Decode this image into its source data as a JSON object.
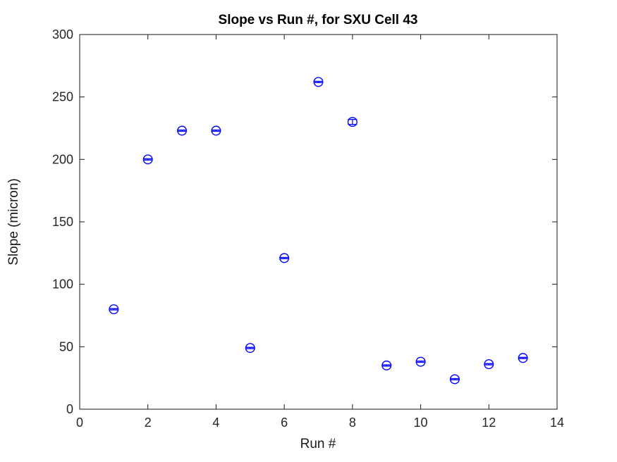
{
  "window": {
    "background": "#ffffff"
  },
  "colors": {
    "marker": "#0000FF",
    "axis": "#1a1a1a",
    "tick_text": "#262626",
    "title_text": "#000000",
    "background": "#ffffff"
  },
  "chart_data": {
    "type": "scatter",
    "subtype": "errorbar",
    "title": "Slope vs Run #, for SXU Cell 43",
    "xlabel": "Run #",
    "ylabel": "Slope (micron)",
    "xlim": [
      0,
      14
    ],
    "ylim": [
      0,
      300
    ],
    "xticks": [
      0,
      2,
      4,
      6,
      8,
      10,
      12,
      14
    ],
    "yticks": [
      0,
      50,
      100,
      150,
      200,
      250,
      300
    ],
    "grid": false,
    "legend": null,
    "box": true,
    "marker": "open-circle",
    "marker_color": "#0000FF",
    "series": [
      {
        "name": "Slope",
        "x": [
          1,
          2,
          3,
          4,
          5,
          6,
          7,
          8,
          9,
          10,
          11,
          12,
          13
        ],
        "y": [
          80,
          200,
          223,
          223,
          49,
          121,
          262,
          230,
          35,
          38,
          24,
          36,
          41
        ],
        "yerr": [
          0.5,
          0.5,
          0.5,
          0.5,
          0.5,
          0.5,
          0.5,
          2,
          0.5,
          0.5,
          0.5,
          0.5,
          0.5
        ]
      }
    ]
  }
}
